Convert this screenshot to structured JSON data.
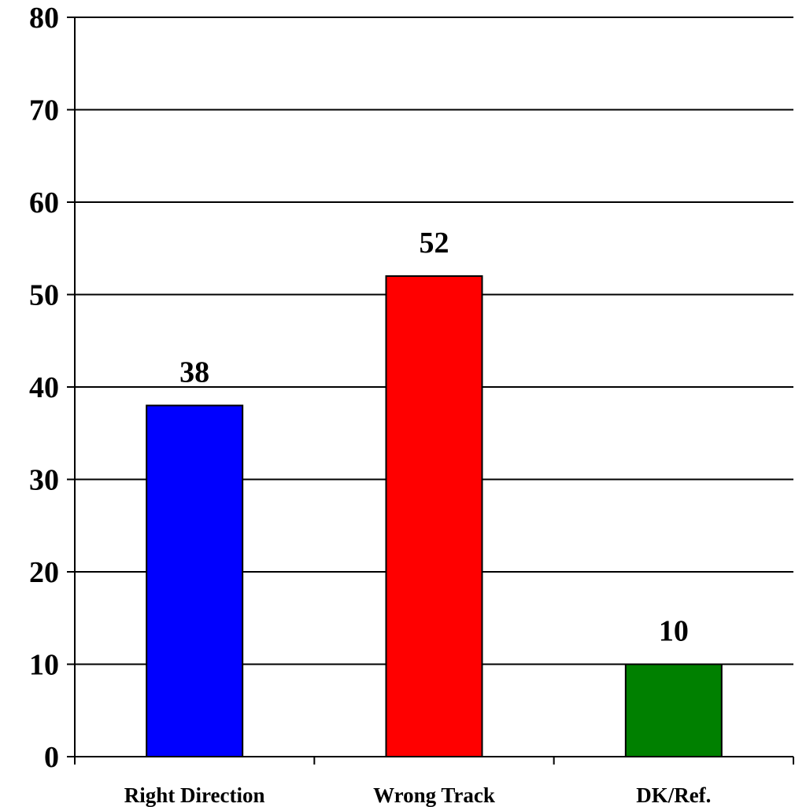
{
  "chart_data": {
    "type": "bar",
    "title": "",
    "xlabel": "",
    "ylabel": "",
    "categories": [
      "Right Direction",
      "Wrong Track",
      "DK/Ref."
    ],
    "values": [
      38,
      52,
      10
    ],
    "data_labels": [
      "38",
      "52",
      "10"
    ],
    "colors": [
      "#0000ff",
      "#ff0000",
      "#008000"
    ],
    "ylim": [
      0,
      80
    ],
    "yticks": [
      0,
      10,
      20,
      30,
      40,
      50,
      60,
      70,
      80
    ],
    "ytick_labels": [
      "0",
      "10",
      "20",
      "30",
      "40",
      "50",
      "60",
      "70",
      "80"
    ],
    "grid": true,
    "legend": "none"
  }
}
